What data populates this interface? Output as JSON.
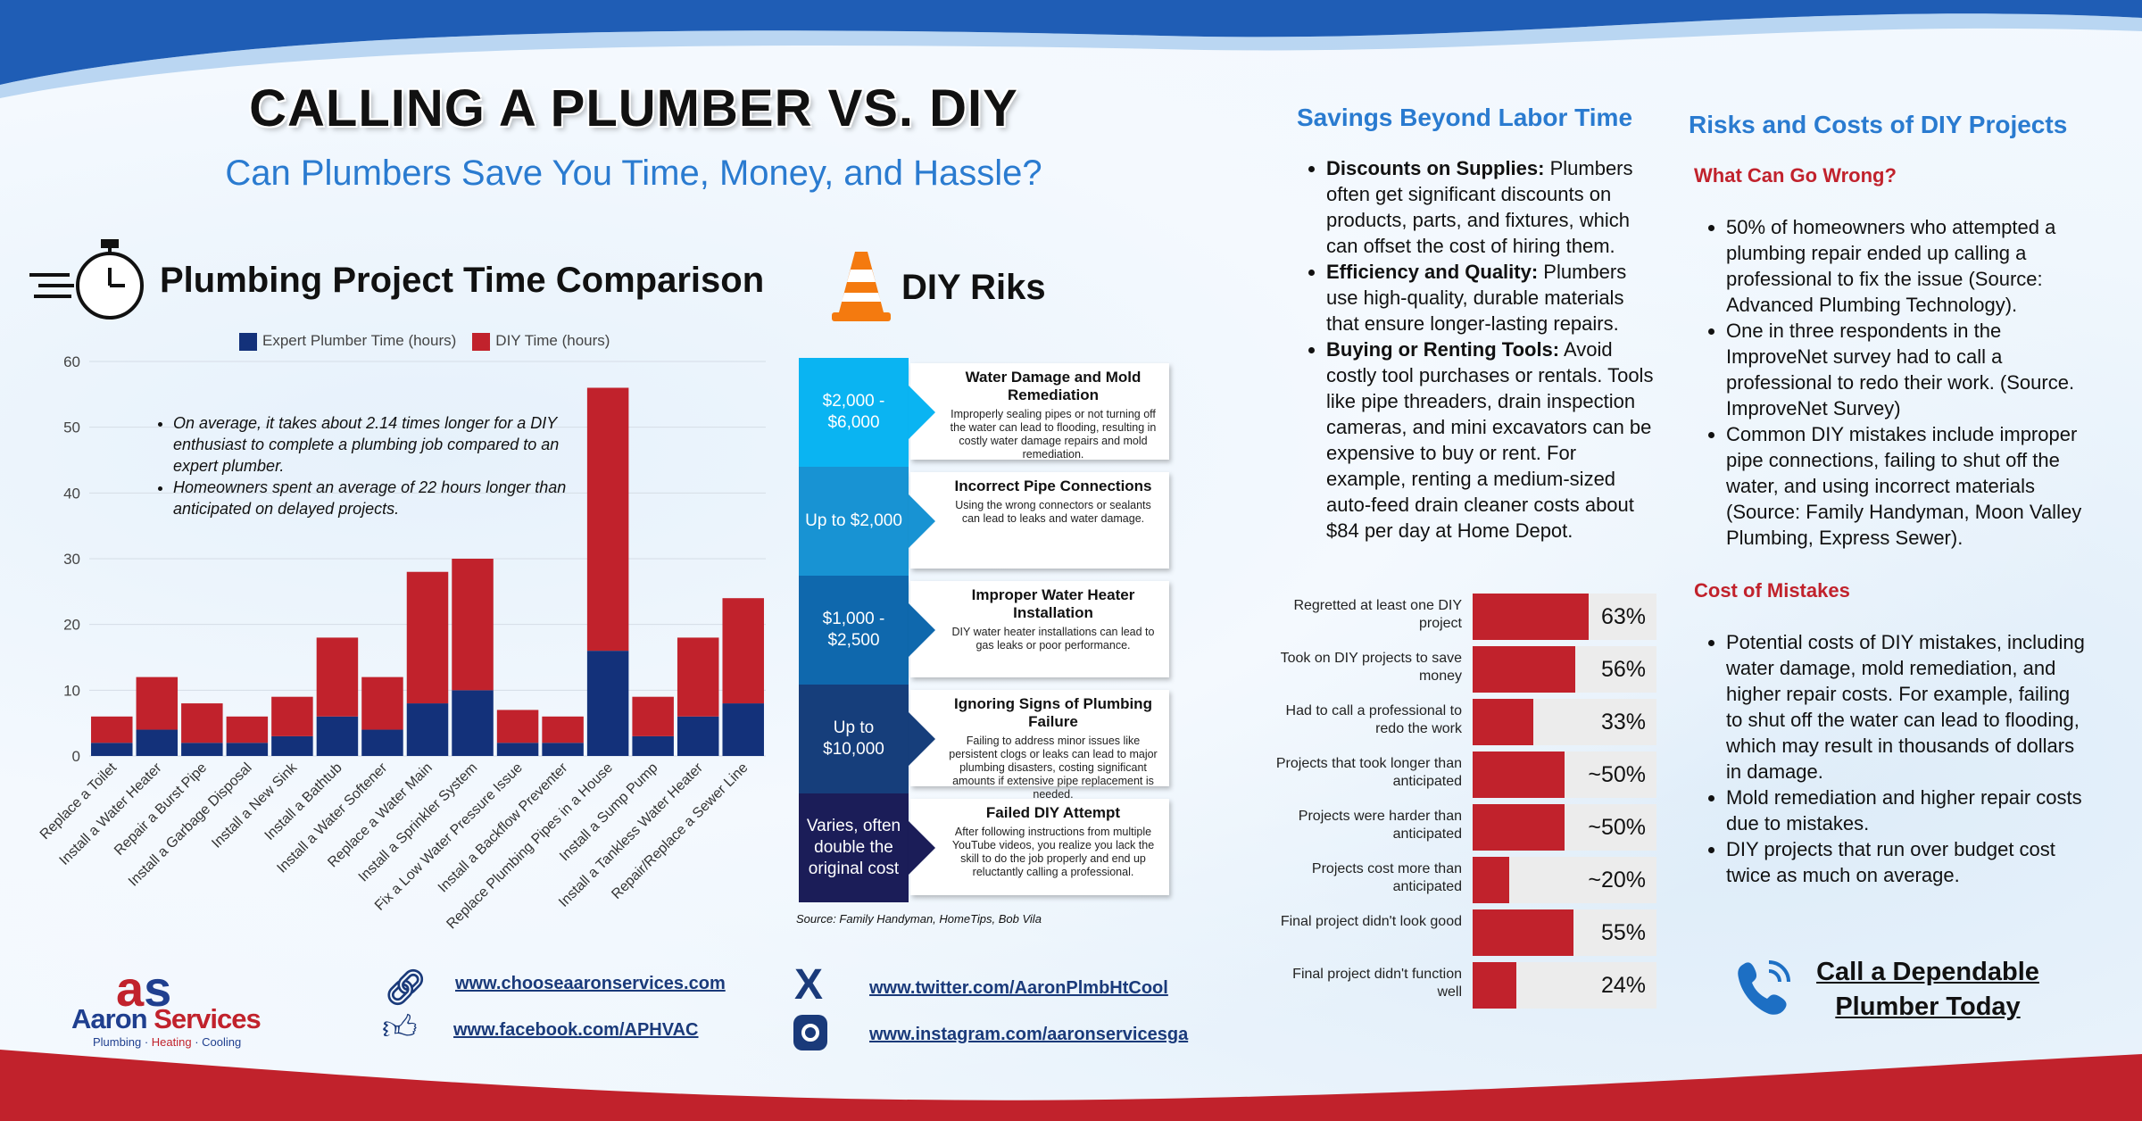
{
  "header": {
    "title": "CALLING A PLUMBER VS. DIY",
    "subtitle": "Can Plumbers Save You Time, Money, and Hassle?"
  },
  "time_section": {
    "heading": "Plumbing Project Time Comparison",
    "icon": "stopwatch-icon",
    "notes": [
      "On average, it takes about 2.14 times longer for a DIY enthusiast to complete a plumbing job compared to an expert plumber.",
      "Homeowners spent an average of 22 hours longer than anticipated on delayed projects."
    ]
  },
  "chart_data": {
    "type": "bar",
    "stacked": true,
    "title": "",
    "xlabel": "",
    "ylabel": "",
    "ylim": [
      0,
      60
    ],
    "yticks": [
      0,
      10,
      20,
      30,
      40,
      50,
      60
    ],
    "grid": true,
    "legend": "top",
    "categories": [
      "Replace a Toilet",
      "Install a Water Heater",
      "Repair a Burst Pipe",
      "Install a Garbage Disposal",
      "Install a New Sink",
      "Install a Bathtub",
      "Install a Water Softener",
      "Replace a Water Main",
      "Install a Sprinkler System",
      "Fix a Low Water Pressure Issue",
      "Install a Backflow Preventer",
      "Replace Plumbing Pipes in a House",
      "Install a Sump Pump",
      "Install a Tankless Water Heater",
      "Repair/Replace a Sewer Line"
    ],
    "series": [
      {
        "name": "Expert Plumber Time (hours)",
        "color": "#13317a",
        "values": [
          2,
          4,
          2,
          2,
          3,
          6,
          4,
          8,
          10,
          2,
          2,
          16,
          3,
          6,
          8
        ]
      },
      {
        "name": "DIY Time (hours)",
        "color": "#c1222c",
        "values": [
          4,
          8,
          6,
          4,
          6,
          12,
          8,
          20,
          20,
          5,
          4,
          40,
          6,
          12,
          16
        ]
      }
    ]
  },
  "risks": {
    "heading": "DIY Riks",
    "icon": "traffic-cone-icon",
    "source": "Source: Family Handyman, HomeTips, Bob Vila",
    "items": [
      {
        "cost": "$2,000 - $6,000",
        "color": "#0ab4f2",
        "title": "Water Damage and Mold Remediation",
        "text": "Improperly sealing pipes or not turning off the water can lead to flooding, resulting in costly water damage repairs and mold remediation."
      },
      {
        "cost": "Up to $2,000",
        "color": "#1893d3",
        "title": "Incorrect Pipe Connections",
        "text": "Using the wrong connectors or sealants can lead to leaks and water damage."
      },
      {
        "cost": "$1,000 - $2,500",
        "color": "#0f68ad",
        "title": "Improper Water Heater Installation",
        "text": "DIY water heater installations can lead to gas leaks or poor performance."
      },
      {
        "cost": "Up to $10,000",
        "color": "#163e7b",
        "title": "Ignoring Signs of Plumbing Failure",
        "text": "Failing to address minor issues like persistent clogs or leaks can lead to major plumbing disasters, costing significant amounts if extensive pipe replacement is needed."
      },
      {
        "cost": "Varies, often double the original cost",
        "color": "#1b1d58",
        "title": "Failed DIY Attempt",
        "text": "After following instructions from multiple YouTube videos, you realize you lack the skill to do the job properly and end up reluctantly calling a professional."
      }
    ]
  },
  "savings": {
    "heading": "Savings Beyond Labor Time",
    "items": [
      {
        "bold": "Discounts on Supplies:",
        "text": " Plumbers often get significant discounts on products, parts, and fixtures, which can offset the cost of hiring them."
      },
      {
        "bold": "Efficiency and Quality:",
        "text": " Plumbers use high-quality, durable materials that ensure longer-lasting repairs."
      },
      {
        "bold": "Buying or Renting Tools:",
        "text": " Avoid costly tool purchases or rentals. Tools like pipe threaders, drain inspection cameras, and mini excavators can be expensive to buy or rent. For example, renting a medium-sized auto-feed drain cleaner costs about $84 per day at Home Depot."
      }
    ]
  },
  "stats": [
    {
      "label": "Regretted at least one DIY project",
      "value": 63,
      "display": "63%"
    },
    {
      "label": "Took on DIY projects to save money",
      "value": 56,
      "display": "56%"
    },
    {
      "label": "Had to call a professional to redo the work",
      "value": 33,
      "display": "33%"
    },
    {
      "label": "Projects that took longer than anticipated",
      "value": 50,
      "display": "~50%"
    },
    {
      "label": "Projects were harder than anticipated",
      "value": 50,
      "display": "~50%"
    },
    {
      "label": "Projects cost more than anticipated",
      "value": 20,
      "display": "~20%"
    },
    {
      "label": "Final project didn't look good",
      "value": 55,
      "display": "55%"
    },
    {
      "label": "Final project didn't function well",
      "value": 24,
      "display": "24%"
    }
  ],
  "risks_costs": {
    "heading": "Risks and Costs of DIY Projects",
    "wrong_heading": "What Can Go Wrong?",
    "wrong_items": [
      "50% of homeowners who attempted a plumbing repair ended up calling a professional to fix the issue (Source: Advanced Plumbing Technology).",
      "One in three respondents in the ImproveNet survey had to call a professional to redo their work. (Source. ImproveNet Survey)",
      "Common DIY mistakes include improper pipe connections, failing to shut off the water, and using incorrect materials (Source: Family Handyman, Moon Valley Plumbing, Express Sewer)."
    ],
    "cost_heading": "Cost of Mistakes",
    "cost_items": [
      "Potential costs of DIY mistakes, including water damage, mold remediation, and higher repair costs. For example, failing to shut off the water can lead to flooding, which may result in thousands of dollars in damage.",
      "Mold remediation and higher repair costs due to mistakes.",
      "DIY projects that run over budget cost twice as much on average."
    ]
  },
  "cta": {
    "line1": "Call a Dependable",
    "line2": "Plumber Today"
  },
  "footer": {
    "logo": {
      "brand1": "Aaron",
      "brand2": "Services",
      "tag1": "Plumbing",
      "tag2": "Heating",
      "tag3": "Cooling"
    },
    "website": "www.chooseaaronservices.com",
    "facebook": "www.facebook.com/APHVAC",
    "twitter": "www.twitter.com/AaronPlmbHtCool",
    "instagram": "www.instagram.com/aaronservicesga"
  },
  "colors": {
    "blue": "#2a7bd0",
    "navy": "#13317a",
    "red": "#c1222c"
  }
}
